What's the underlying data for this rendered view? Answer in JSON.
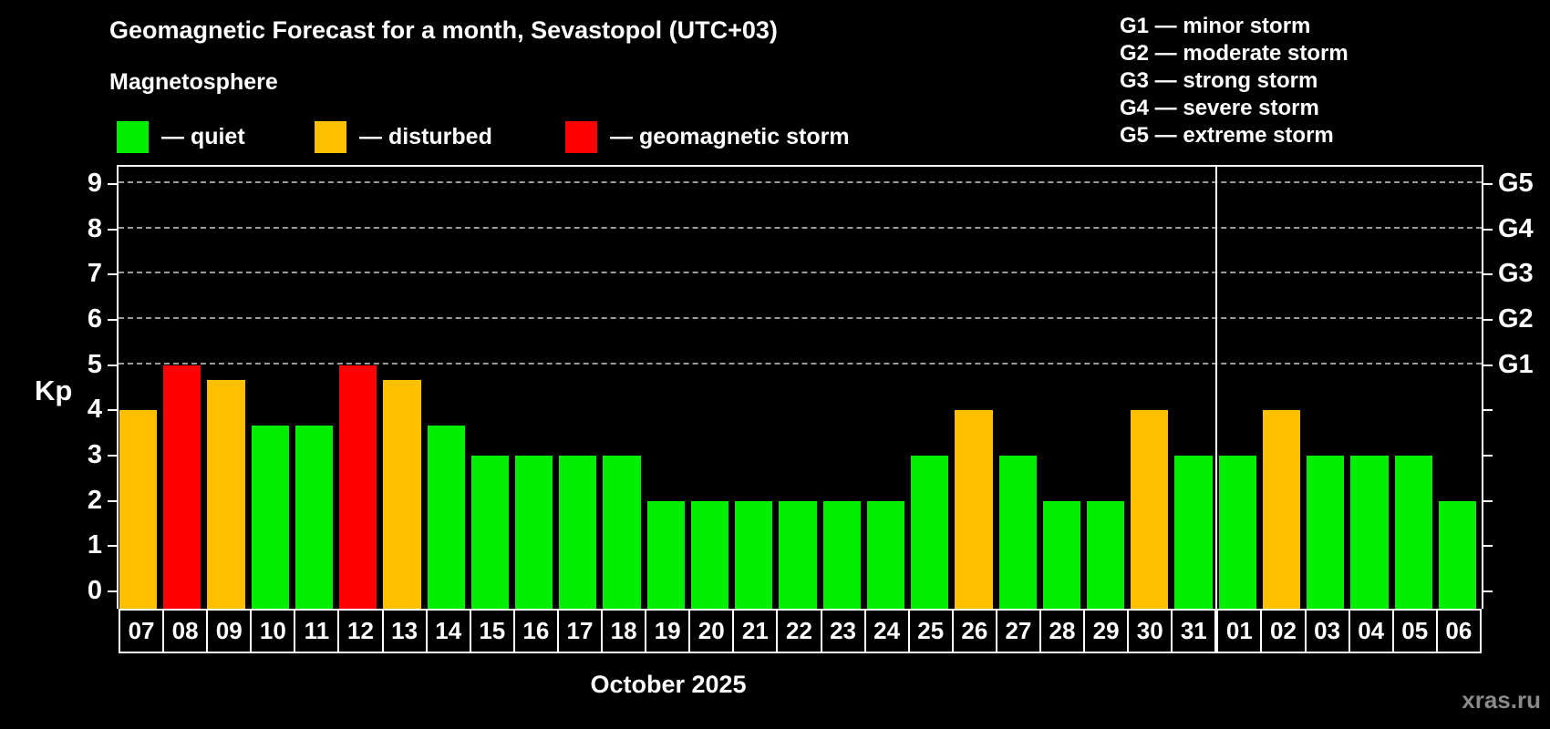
{
  "header": {
    "title": "Geomagnetic Forecast for a month, Sevastopol (UTC+03)",
    "subtitle": "Magnetosphere"
  },
  "legend": {
    "items": [
      {
        "status": "quiet",
        "label": "— quiet"
      },
      {
        "status": "disturbed",
        "label": "— disturbed"
      },
      {
        "status": "storm",
        "label": "— geomagnetic storm"
      }
    ]
  },
  "g_legend": [
    "G1 — minor storm",
    "G2 — moderate storm",
    "G3 — strong storm",
    "G4 — severe storm",
    "G5 — extreme storm"
  ],
  "colors": {
    "quiet": "#00EE00",
    "disturbed": "#FFC000",
    "storm": "#FF0000",
    "axis": "#FFFFFF",
    "grid": "#9C9C9C",
    "background": "#000000",
    "watermark": "#8A8A8A"
  },
  "watermark": "xras.ru",
  "chart_data": {
    "type": "bar",
    "title": "Geomagnetic Forecast for a month, Sevastopol (UTC+03)",
    "ylabel": "Kp",
    "xlabel": "October 2025",
    "ylim": [
      0,
      9
    ],
    "yticks": [
      0,
      1,
      2,
      3,
      4,
      5,
      6,
      7,
      8,
      9
    ],
    "grid": "dashed horizontal gridlines only at Kp 5,6,7,8,9 (G-storm levels)",
    "legend_position": "top",
    "g_levels": [
      {
        "label": "G1",
        "kp": 5
      },
      {
        "label": "G2",
        "kp": 6
      },
      {
        "label": "G3",
        "kp": 7
      },
      {
        "label": "G4",
        "kp": 8
      },
      {
        "label": "G5",
        "kp": 9
      }
    ],
    "month_separator_before": "01",
    "bars": [
      {
        "date": "07",
        "kp": 4,
        "status": "disturbed"
      },
      {
        "date": "08",
        "kp": 5,
        "status": "storm"
      },
      {
        "date": "09",
        "kp": 4.67,
        "status": "disturbed"
      },
      {
        "date": "10",
        "kp": 3.67,
        "status": "quiet"
      },
      {
        "date": "11",
        "kp": 3.67,
        "status": "quiet"
      },
      {
        "date": "12",
        "kp": 5,
        "status": "storm"
      },
      {
        "date": "13",
        "kp": 4.67,
        "status": "disturbed"
      },
      {
        "date": "14",
        "kp": 3.67,
        "status": "quiet"
      },
      {
        "date": "15",
        "kp": 3,
        "status": "quiet"
      },
      {
        "date": "16",
        "kp": 3,
        "status": "quiet"
      },
      {
        "date": "17",
        "kp": 3,
        "status": "quiet"
      },
      {
        "date": "18",
        "kp": 3,
        "status": "quiet"
      },
      {
        "date": "19",
        "kp": 2,
        "status": "quiet"
      },
      {
        "date": "20",
        "kp": 2,
        "status": "quiet"
      },
      {
        "date": "21",
        "kp": 2,
        "status": "quiet"
      },
      {
        "date": "22",
        "kp": 2,
        "status": "quiet"
      },
      {
        "date": "23",
        "kp": 2,
        "status": "quiet"
      },
      {
        "date": "24",
        "kp": 2,
        "status": "quiet"
      },
      {
        "date": "25",
        "kp": 3,
        "status": "quiet"
      },
      {
        "date": "26",
        "kp": 4,
        "status": "disturbed"
      },
      {
        "date": "27",
        "kp": 3,
        "status": "quiet"
      },
      {
        "date": "28",
        "kp": 2,
        "status": "quiet"
      },
      {
        "date": "29",
        "kp": 2,
        "status": "quiet"
      },
      {
        "date": "30",
        "kp": 4,
        "status": "disturbed"
      },
      {
        "date": "31",
        "kp": 3,
        "status": "quiet"
      },
      {
        "date": "01",
        "kp": 3,
        "status": "quiet"
      },
      {
        "date": "02",
        "kp": 4,
        "status": "disturbed"
      },
      {
        "date": "03",
        "kp": 3,
        "status": "quiet"
      },
      {
        "date": "04",
        "kp": 3,
        "status": "quiet"
      },
      {
        "date": "05",
        "kp": 3,
        "status": "quiet"
      },
      {
        "date": "06",
        "kp": 2,
        "status": "quiet"
      }
    ]
  }
}
